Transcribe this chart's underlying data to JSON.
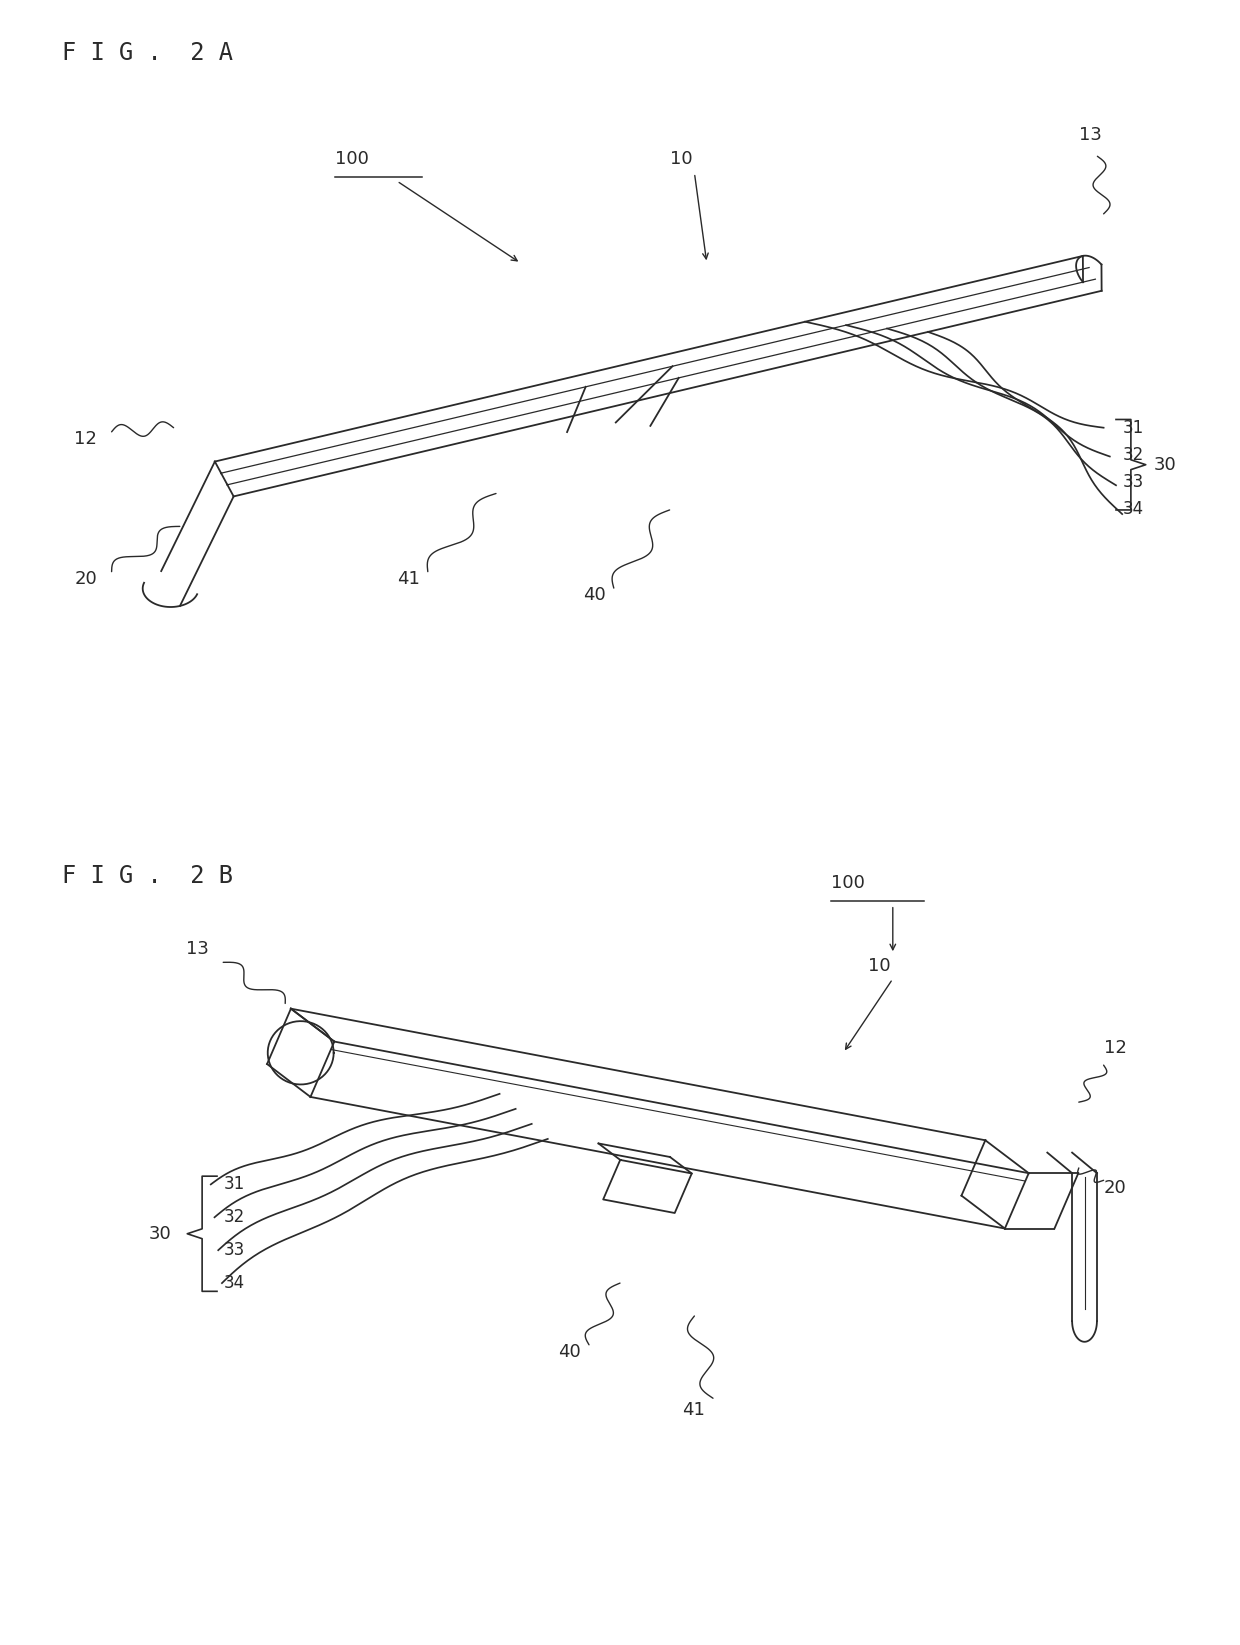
{
  "bg_color": "#ffffff",
  "line_color": "#2a2a2a",
  "fig2a_title": "F I G .  2 A",
  "fig2b_title": "F I G .  2 B",
  "font_size_title": 17,
  "font_size_label": 13
}
